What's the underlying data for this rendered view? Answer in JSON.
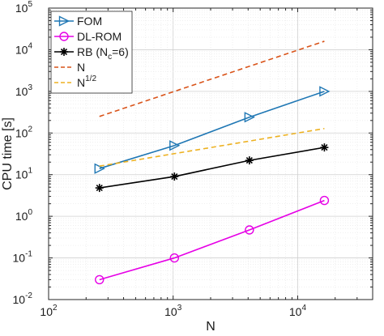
{
  "chart_data": {
    "type": "line",
    "xlabel": "N",
    "ylabel": "CPU time [s]",
    "xscale": "log",
    "yscale": "log",
    "xlim": [
      100,
      40000
    ],
    "ylim": [
      0.01,
      100000
    ],
    "grid": true,
    "legend_position": "top-left",
    "x_ticks": [
      {
        "value": 100,
        "base": "10",
        "exp": "2"
      },
      {
        "value": 1000,
        "base": "10",
        "exp": "3"
      },
      {
        "value": 10000,
        "base": "10",
        "exp": "4"
      }
    ],
    "y_ticks": [
      {
        "value": 0.01,
        "base": "10",
        "exp": "-2"
      },
      {
        "value": 0.1,
        "base": "10",
        "exp": "-1"
      },
      {
        "value": 1,
        "base": "10",
        "exp": "0"
      },
      {
        "value": 10,
        "base": "10",
        "exp": "1"
      },
      {
        "value": 100,
        "base": "10",
        "exp": "2"
      },
      {
        "value": 1000,
        "base": "10",
        "exp": "3"
      },
      {
        "value": 10000,
        "base": "10",
        "exp": "4"
      },
      {
        "value": 100000,
        "base": "10",
        "exp": "5"
      }
    ],
    "series": [
      {
        "name": "FOM",
        "color": "#1f77b4",
        "marker": "triangle-right",
        "line": "solid",
        "x": [
          256,
          1024,
          4096,
          16384
        ],
        "y": [
          14,
          50,
          240,
          1000
        ]
      },
      {
        "name": "DL-ROM",
        "color": "#e600e6",
        "marker": "circle",
        "line": "solid",
        "x": [
          256,
          1024,
          4096,
          16384
        ],
        "y": [
          0.03,
          0.1,
          0.47,
          2.4
        ]
      },
      {
        "name": "RB (N",
        "name_sub": "c",
        "name_tail": "=6)",
        "color": "#000000",
        "marker": "asterisk",
        "line": "solid",
        "x": [
          256,
          1024,
          4096,
          16384
        ],
        "y": [
          4.8,
          9,
          22,
          45
        ]
      },
      {
        "name": "N",
        "color": "#d95319",
        "marker": "none",
        "line": "dashed",
        "x": [
          256,
          16384
        ],
        "y": [
          250,
          16000
        ]
      },
      {
        "name": "N",
        "name_sup": "1/2",
        "color": "#edb120",
        "marker": "none",
        "line": "dashed",
        "x": [
          256,
          16384
        ],
        "y": [
          16,
          128
        ]
      }
    ]
  }
}
